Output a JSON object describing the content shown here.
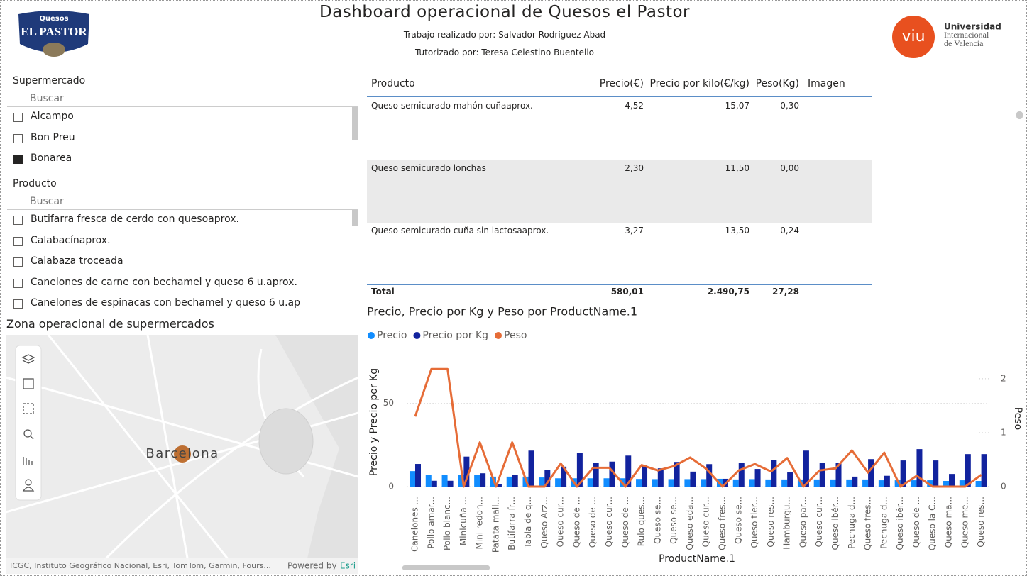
{
  "header": {
    "title": "Dashboard operacional de Quesos el Pastor",
    "subtitle_1": "Trabajo realizado por: Salvador Rodríguez Abad",
    "subtitle_2": "Tutorizado por: Teresa Celestino Buentello",
    "logo_left": [
      "Quesos",
      "EL PASTOR"
    ],
    "logo_right": {
      "mark": "viu",
      "lines": [
        "Universidad",
        "Internacional",
        "de Valencia"
      ]
    }
  },
  "slicers": [
    {
      "title": "Supermercado",
      "search": "Buscar",
      "items": [
        {
          "label": "Alcampo",
          "checked": false
        },
        {
          "label": "Bon Preu",
          "checked": false
        },
        {
          "label": "Bonarea",
          "checked": true
        }
      ]
    },
    {
      "title": "Producto",
      "search": "Buscar",
      "items": [
        {
          "label": "Butifarra fresca de cerdo con quesoaprox.",
          "checked": false
        },
        {
          "label": "Calabacínaprox.",
          "checked": false
        },
        {
          "label": "Calabaza troceada",
          "checked": false
        },
        {
          "label": "Canelones de carne con bechamel y queso 6 u.aprox.",
          "checked": false
        },
        {
          "label": "Canelones de espinacas con bechamel y queso 6 u.ap",
          "checked": false
        }
      ]
    }
  ],
  "table": {
    "columns": [
      "Producto",
      "Precio(€)",
      "Precio por kilo(€/kg)",
      "Peso(Kg)",
      "Imagen"
    ],
    "rows": [
      [
        "Queso semicurado mahón cuñaaprox.",
        "4,52",
        "15,07",
        "0,30"
      ],
      [
        "Queso semicurado lonchas",
        "2,30",
        "11,50",
        "0,00"
      ],
      [
        "Queso semicurado cuña sin lactosaaprox.",
        "3,27",
        "13,50",
        "0,24"
      ]
    ],
    "total": [
      "Total",
      "580,01",
      "2.490,75",
      "27,28"
    ]
  },
  "map": {
    "title": "Zona operacional de supermercados",
    "place": "Barcelona",
    "attribution": "ICGC, Instituto Geográfico Nacional, Esri, TomTom, Garmin, Fours...",
    "powered": "Powered by",
    "esri": "Esri"
  },
  "chart_data": {
    "type": "combo",
    "title": "Precio, Precio por Kg y Peso por ProductName.1",
    "x_label": "ProductName.1",
    "y_label": "Precio y Precio por Kg",
    "y2_label": "Peso",
    "legend": "top-left",
    "grid": true,
    "categories": [
      "Canelones ...",
      "Pollo amar...",
      "Pollo blanc...",
      "Minicuña ...",
      "Mini redon...",
      "Patata mall...",
      "Butifarra fr...",
      "Tabla de q...",
      "Queso Arz...",
      "Queso cur...",
      "Queso de ...",
      "Queso de ...",
      "Queso cur...",
      "Queso de ...",
      "Rulo ques...",
      "Queso se...",
      "Queso se...",
      "Queso eda...",
      "Queso cur...",
      "Queso fres...",
      "Queso se...",
      "Queso tier...",
      "Queso res...",
      "Hamburgu...",
      "Queso par...",
      "Queso cur...",
      "Queso ibér...",
      "Pechuga d...",
      "Queso fres...",
      "Pechuga d...",
      "Queso ibér...",
      "Queso de ...",
      "Queso la C...",
      "Queso ma...",
      "Queso me...",
      "Queso res..."
    ],
    "series": [
      {
        "name": "Precio",
        "type": "bar",
        "color": "#118dff",
        "values": [
          9.3,
          7,
          7,
          7,
          7,
          6,
          6,
          6,
          5.5,
          5,
          5,
          5,
          5,
          5,
          4.6,
          4.5,
          4.5,
          4.5,
          4.5,
          4.7,
          4.3,
          4.5,
          4.3,
          4.3,
          4.3,
          4.3,
          4.3,
          4.3,
          4.3,
          3.8,
          3.8,
          3.8,
          3.8,
          3.4,
          3.8,
          3.4
        ]
      },
      {
        "name": "Precio por Kg",
        "type": "bar",
        "color": "#12239e",
        "values": [
          13.6,
          3.5,
          3.5,
          18,
          8,
          1.3,
          7,
          21.6,
          10,
          12,
          20,
          14.4,
          15,
          18.6,
          12.7,
          11,
          14.8,
          9,
          13.5,
          4.7,
          14.4,
          10.6,
          16,
          8.5,
          21.6,
          14.4,
          14.4,
          6,
          16.5,
          6.5,
          15.7,
          22.5,
          15.7,
          7.6,
          19.5,
          19.5
        ]
      },
      {
        "name": "Peso",
        "type": "line",
        "axis": "y2",
        "color": "#e66c37",
        "values": [
          1.3,
          2.18,
          2.18,
          0,
          0.82,
          0,
          0.82,
          0,
          0,
          0.43,
          0,
          0.35,
          0.35,
          0,
          0.4,
          0.3,
          0.38,
          0.54,
          0.33,
          0,
          0.3,
          0.42,
          0.28,
          0.53,
          0,
          0.3,
          0.34,
          0.67,
          0.26,
          0.63,
          0,
          0.2,
          0,
          0,
          0,
          0.22
        ]
      }
    ],
    "ylim": [
      0,
      77
    ],
    "yticks": [
      0,
      50
    ],
    "y2lim": [
      0,
      2.38
    ],
    "y2ticks": [
      0,
      1,
      2
    ]
  }
}
